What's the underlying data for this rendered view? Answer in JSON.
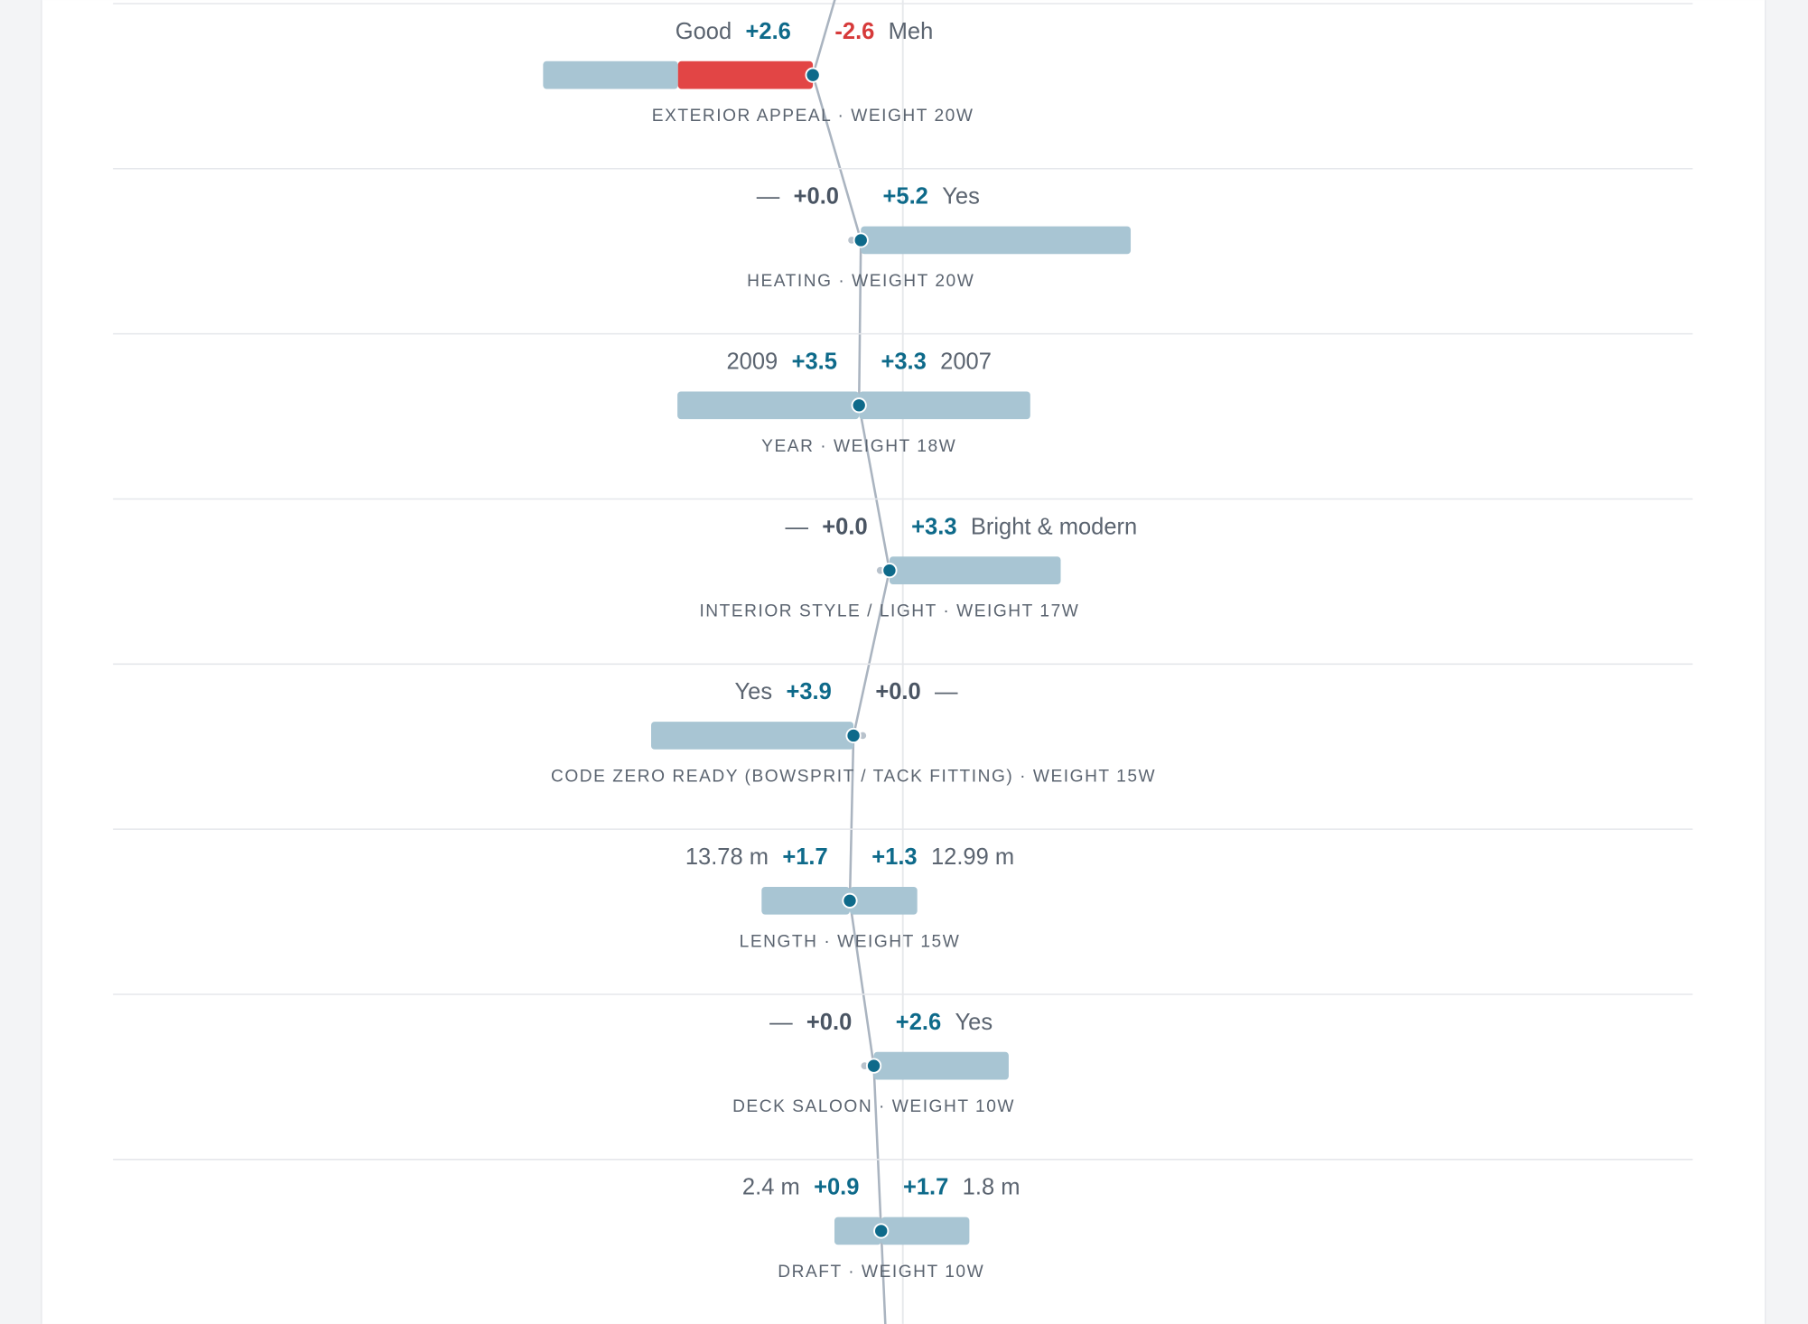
{
  "rows": [
    {
      "left_label": "Good",
      "left_score": "+2.6",
      "right_score": "-2.6",
      "right_label": "Meh",
      "name": "EXTERIOR APPEAL · WEIGHT 20W"
    },
    {
      "left_label": "—",
      "left_score": "+0.0",
      "right_score": "+5.2",
      "right_label": "Yes",
      "name": "HEATING · WEIGHT 20W"
    },
    {
      "left_label": "2009",
      "left_score": "+3.5",
      "right_score": "+3.3",
      "right_label": "2007",
      "name": "YEAR · WEIGHT 18W"
    },
    {
      "left_label": "—",
      "left_score": "+0.0",
      "right_score": "+3.3",
      "right_label": "Bright & modern",
      "name": "INTERIOR STYLE / LIGHT · WEIGHT 17W"
    },
    {
      "left_label": "Yes",
      "left_score": "+3.9",
      "right_score": "+0.0",
      "right_label": "—",
      "name": "CODE ZERO READY (BOWSPRIT / TACK FITTING) · WEIGHT 15W"
    },
    {
      "left_label": "13.78 m",
      "left_score": "+1.7",
      "right_score": "+1.3",
      "right_label": "12.99 m",
      "name": "LENGTH · WEIGHT 15W"
    },
    {
      "left_label": "—",
      "left_score": "+0.0",
      "right_score": "+2.6",
      "right_label": "Yes",
      "name": "DECK SALOON · WEIGHT 10W"
    },
    {
      "left_label": "2.4 m",
      "left_score": "+0.9",
      "right_score": "+1.7",
      "right_label": "1.8 m",
      "name": "DRAFT · WEIGHT 10W"
    }
  ]
}
